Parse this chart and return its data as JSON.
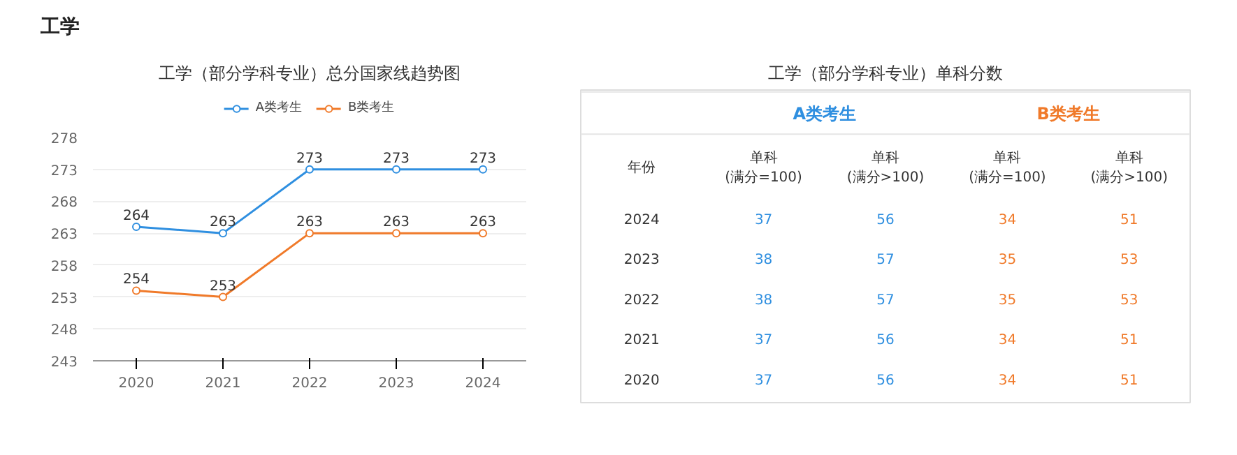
{
  "chart_data": [
    {
      "type": "other",
      "title": "工学"
    },
    {
      "type": "line",
      "title": "工学（部分学科专业）总分国家线趋势图",
      "categories": [
        "2020",
        "2021",
        "2022",
        "2023",
        "2024"
      ],
      "series": [
        {
          "name": "A类考生",
          "color": "#2f8fe0",
          "values": [
            264,
            263,
            273,
            273,
            273
          ]
        },
        {
          "name": "B类考生",
          "color": "#f07a2a",
          "values": [
            254,
            253,
            263,
            263,
            263
          ]
        }
      ],
      "ylim": [
        243,
        278
      ],
      "yticks": [
        243,
        248,
        253,
        258,
        263,
        268,
        273,
        278
      ],
      "grid": "y",
      "legend": "top",
      "marker": "circle",
      "data_labels": true
    },
    {
      "type": "heatmap",
      "data_labels": true,
      "title": "工学（部分学科专业）单科分数",
      "annotations": [
        "A类考生",
        "B类考生"
      ],
      "ylabel": "年份",
      "categories": [
        "单科\n(满分=100)",
        "单科\n(满分>100)",
        "单科\n(满分=100)",
        "单科\n(满分>100)"
      ],
      "colors": [
        "#2f8fe0",
        "#2f8fe0",
        "#f07a2a",
        "#f07a2a"
      ],
      "y_categories": [
        "2024",
        "2023",
        "2022",
        "2021",
        "2020"
      ],
      "cells": [
        [
          37,
          56,
          34,
          51
        ],
        [
          38,
          57,
          35,
          53
        ],
        [
          38,
          57,
          35,
          53
        ],
        [
          37,
          56,
          34,
          51
        ],
        [
          37,
          56,
          34,
          51
        ]
      ]
    }
  ]
}
